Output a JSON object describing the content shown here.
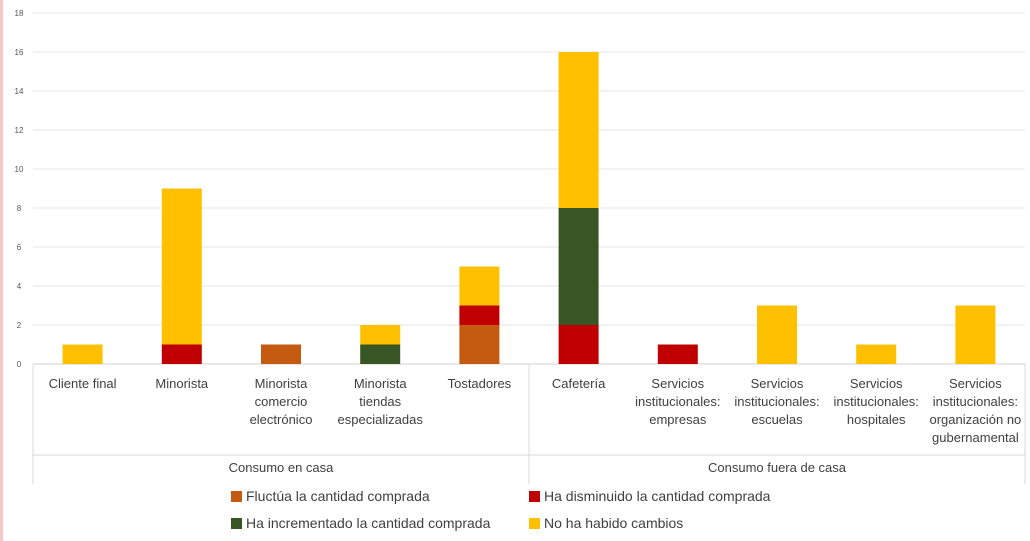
{
  "chart_data": {
    "type": "bar",
    "stacked": true,
    "grid": true,
    "legend_position": "bottom",
    "ylim": [
      0,
      18
    ],
    "yticks": [
      0,
      2,
      4,
      6,
      8,
      10,
      12,
      14,
      16,
      18
    ],
    "categories": [
      [
        "Cliente final"
      ],
      [
        "Minorista"
      ],
      [
        "Minorista",
        "comercio",
        "electrónico"
      ],
      [
        "Minorista",
        "tiendas",
        "especializadas"
      ],
      [
        "Tostadores"
      ],
      [
        "Cafetería"
      ],
      [
        "Servicios",
        "institucionales:",
        "empresas"
      ],
      [
        "Servicios",
        "institucionales:",
        "escuelas"
      ],
      [
        "Servicios",
        "institucionales:",
        "hospitales"
      ],
      [
        "Servicios",
        "institucionales:",
        "organización no",
        "gubernamental"
      ]
    ],
    "groups": [
      {
        "label": "Consumo en casa",
        "categories": [
          0,
          1,
          2,
          3,
          4
        ]
      },
      {
        "label": "Consumo fuera de casa",
        "categories": [
          5,
          6,
          7,
          8,
          9
        ]
      }
    ],
    "series": [
      {
        "name": "Fluctúa la cantidad comprada",
        "color": "#c55a11",
        "values": [
          0,
          0,
          1,
          0,
          2,
          0,
          0,
          0,
          0,
          0
        ]
      },
      {
        "name": "Ha disminuido la cantidad comprada",
        "color": "#c00000",
        "values": [
          0,
          1,
          0,
          0,
          1,
          2,
          1,
          0,
          0,
          0
        ]
      },
      {
        "name": "Ha incrementado la cantidad comprada",
        "color": "#375623",
        "values": [
          0,
          0,
          0,
          1,
          0,
          6,
          0,
          0,
          0,
          0
        ]
      },
      {
        "name": "No ha habido cambios",
        "color": "#ffc000",
        "values": [
          1,
          8,
          0,
          1,
          2,
          8,
          0,
          3,
          1,
          3
        ]
      }
    ],
    "legend_order": [
      0,
      1,
      2,
      3
    ]
  }
}
